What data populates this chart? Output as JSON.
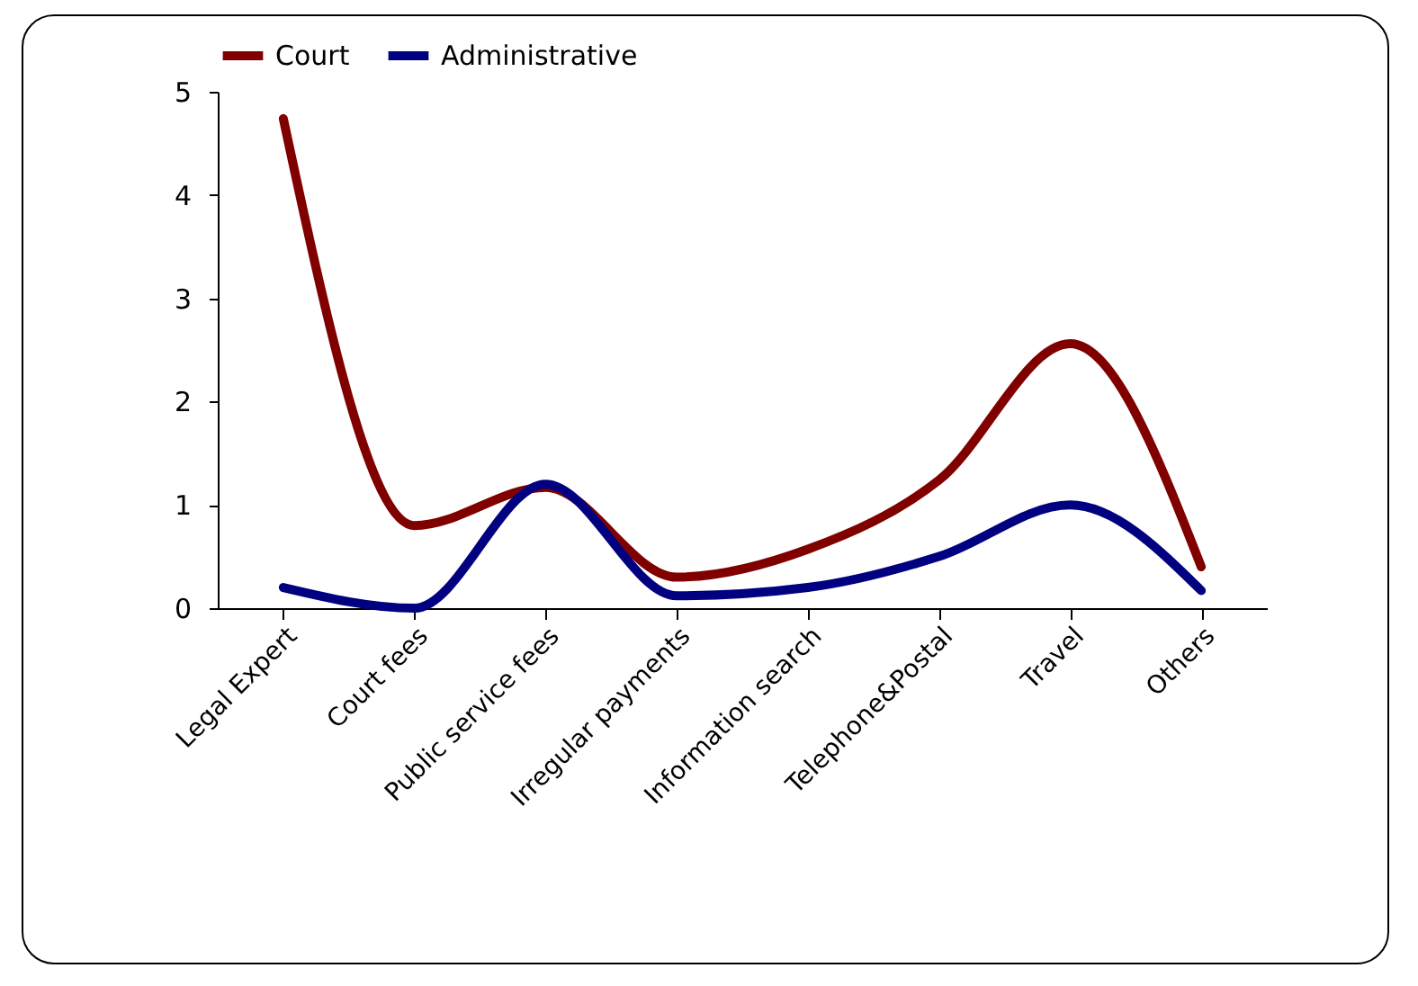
{
  "chart_data": {
    "type": "line",
    "categories": [
      "Legal Expert",
      "Court fees",
      "Public service fees",
      "Irregular payments",
      "Information search",
      "Telephone&Postal",
      "Travel",
      "Others"
    ],
    "series": [
      {
        "name": "Court",
        "color": "#800000",
        "values": [
          4.74,
          0.8,
          1.17,
          0.3,
          0.57,
          1.24,
          2.56,
          0.4
        ]
      },
      {
        "name": "Administrative",
        "color": "#000080",
        "values": [
          0.2,
          0,
          1.2,
          0.12,
          0.2,
          0.5,
          1.0,
          0.17
        ]
      }
    ],
    "ylim": [
      0,
      5
    ],
    "yticks": [
      0,
      1,
      2,
      3,
      4,
      5
    ],
    "grid": false,
    "legend": "top",
    "marker": "none",
    "line_style": "solid"
  }
}
